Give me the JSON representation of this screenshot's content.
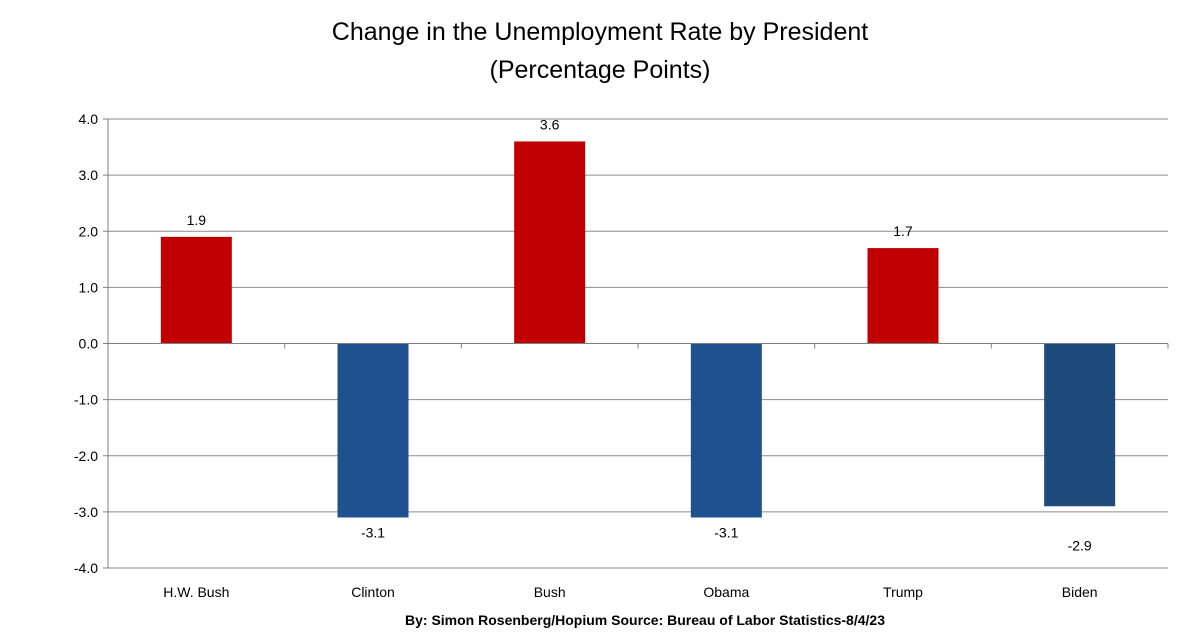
{
  "chart_data": {
    "type": "bar",
    "title": "Change in the Unemployment Rate by President",
    "subtitle": "(Percentage Points)",
    "categories": [
      "H.W. Bush",
      "Clinton",
      "Bush",
      "Obama",
      "Trump",
      "Biden"
    ],
    "values": [
      1.9,
      -3.1,
      3.6,
      -3.1,
      1.7,
      -2.9
    ],
    "data_labels": [
      "1.9",
      "-3.1",
      "3.6",
      "-3.1",
      "1.7",
      "-2.9"
    ],
    "bar_colors": [
      "#c00000",
      "#1f5190",
      "#c00000",
      "#1f5190",
      "#c00000",
      "#1f4a7c"
    ],
    "ylim": [
      -4.0,
      4.0
    ],
    "yticks": [
      4.0,
      3.0,
      2.0,
      1.0,
      0.0,
      -1.0,
      -2.0,
      -3.0,
      -4.0
    ],
    "ytick_labels": [
      "4.0",
      "3.0",
      "2.0",
      "1.0",
      "0.0",
      "-1.0",
      "-2.0",
      "-3.0",
      "-4.0"
    ],
    "xlabel": "",
    "ylabel": "",
    "grid": true,
    "legend": "none",
    "source_note": "By: Simon Rosenberg/Hopium Source: Bureau of Labor Statistics-8/4/23"
  }
}
